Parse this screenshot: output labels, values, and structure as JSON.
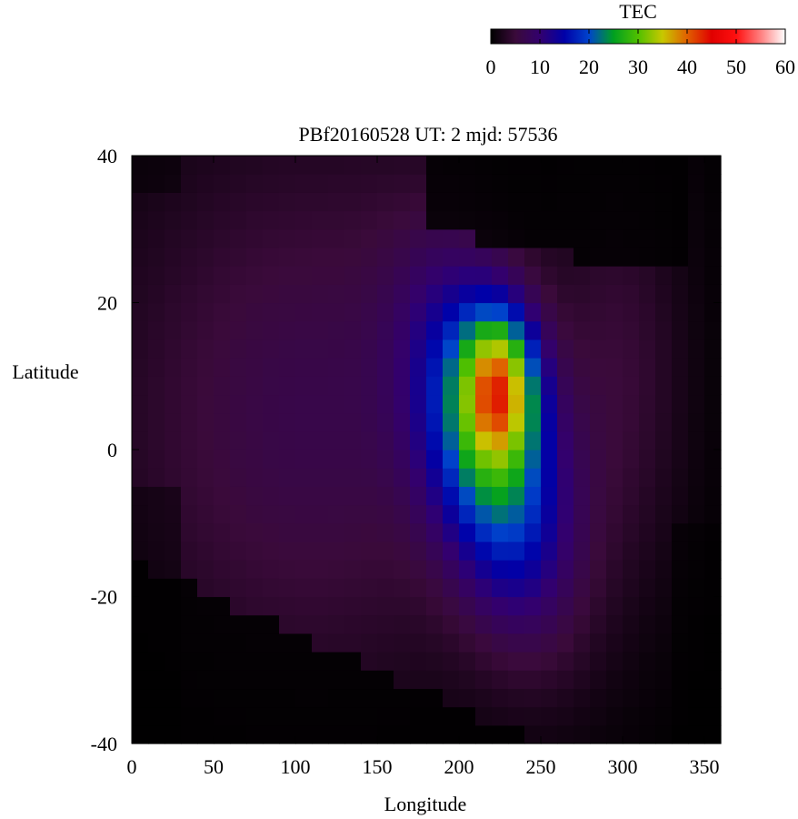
{
  "chart_data": {
    "type": "heatmap",
    "title": "PBf20160528  UT: 2  mjd: 57536",
    "xlabel": "Longitude",
    "ylabel": "Latitude",
    "xlim": [
      0,
      360
    ],
    "ylim": [
      -40,
      40
    ],
    "x_ticks": [
      "0",
      "50",
      "100",
      "150",
      "200",
      "250",
      "300",
      "350"
    ],
    "y_ticks": [
      "40",
      "20",
      "0",
      "-20",
      "-40"
    ],
    "x_tick_values": [
      0,
      50,
      100,
      150,
      200,
      250,
      300,
      350
    ],
    "y_tick_values": [
      40,
      20,
      0,
      -20,
      -40
    ],
    "colorbar": {
      "label": "TEC",
      "range": [
        0,
        60
      ],
      "ticks": [
        "0",
        "10",
        "20",
        "30",
        "40",
        "50",
        "60"
      ],
      "tick_values": [
        0,
        10,
        20,
        30,
        40,
        50,
        60
      ],
      "colormap_stops": [
        {
          "value": 0,
          "color": "#000000"
        },
        {
          "value": 5,
          "color": "#3a0a3a"
        },
        {
          "value": 10,
          "color": "#33006e"
        },
        {
          "value": 15,
          "color": "#0000a8"
        },
        {
          "value": 20,
          "color": "#0044cc"
        },
        {
          "value": 25,
          "color": "#00a020"
        },
        {
          "value": 30,
          "color": "#50c000"
        },
        {
          "value": 35,
          "color": "#c8c800"
        },
        {
          "value": 40,
          "color": "#e06000"
        },
        {
          "value": 45,
          "color": "#e00000"
        },
        {
          "value": 50,
          "color": "#ff1010"
        },
        {
          "value": 55,
          "color": "#ff8080"
        },
        {
          "value": 60,
          "color": "#ffffff"
        }
      ]
    },
    "grid": false,
    "cell_size_deg": {
      "lon": 10,
      "lat": 2.5
    },
    "data_notes_peak": {
      "lon": 220,
      "lat": 10,
      "tec": 45
    }
  }
}
